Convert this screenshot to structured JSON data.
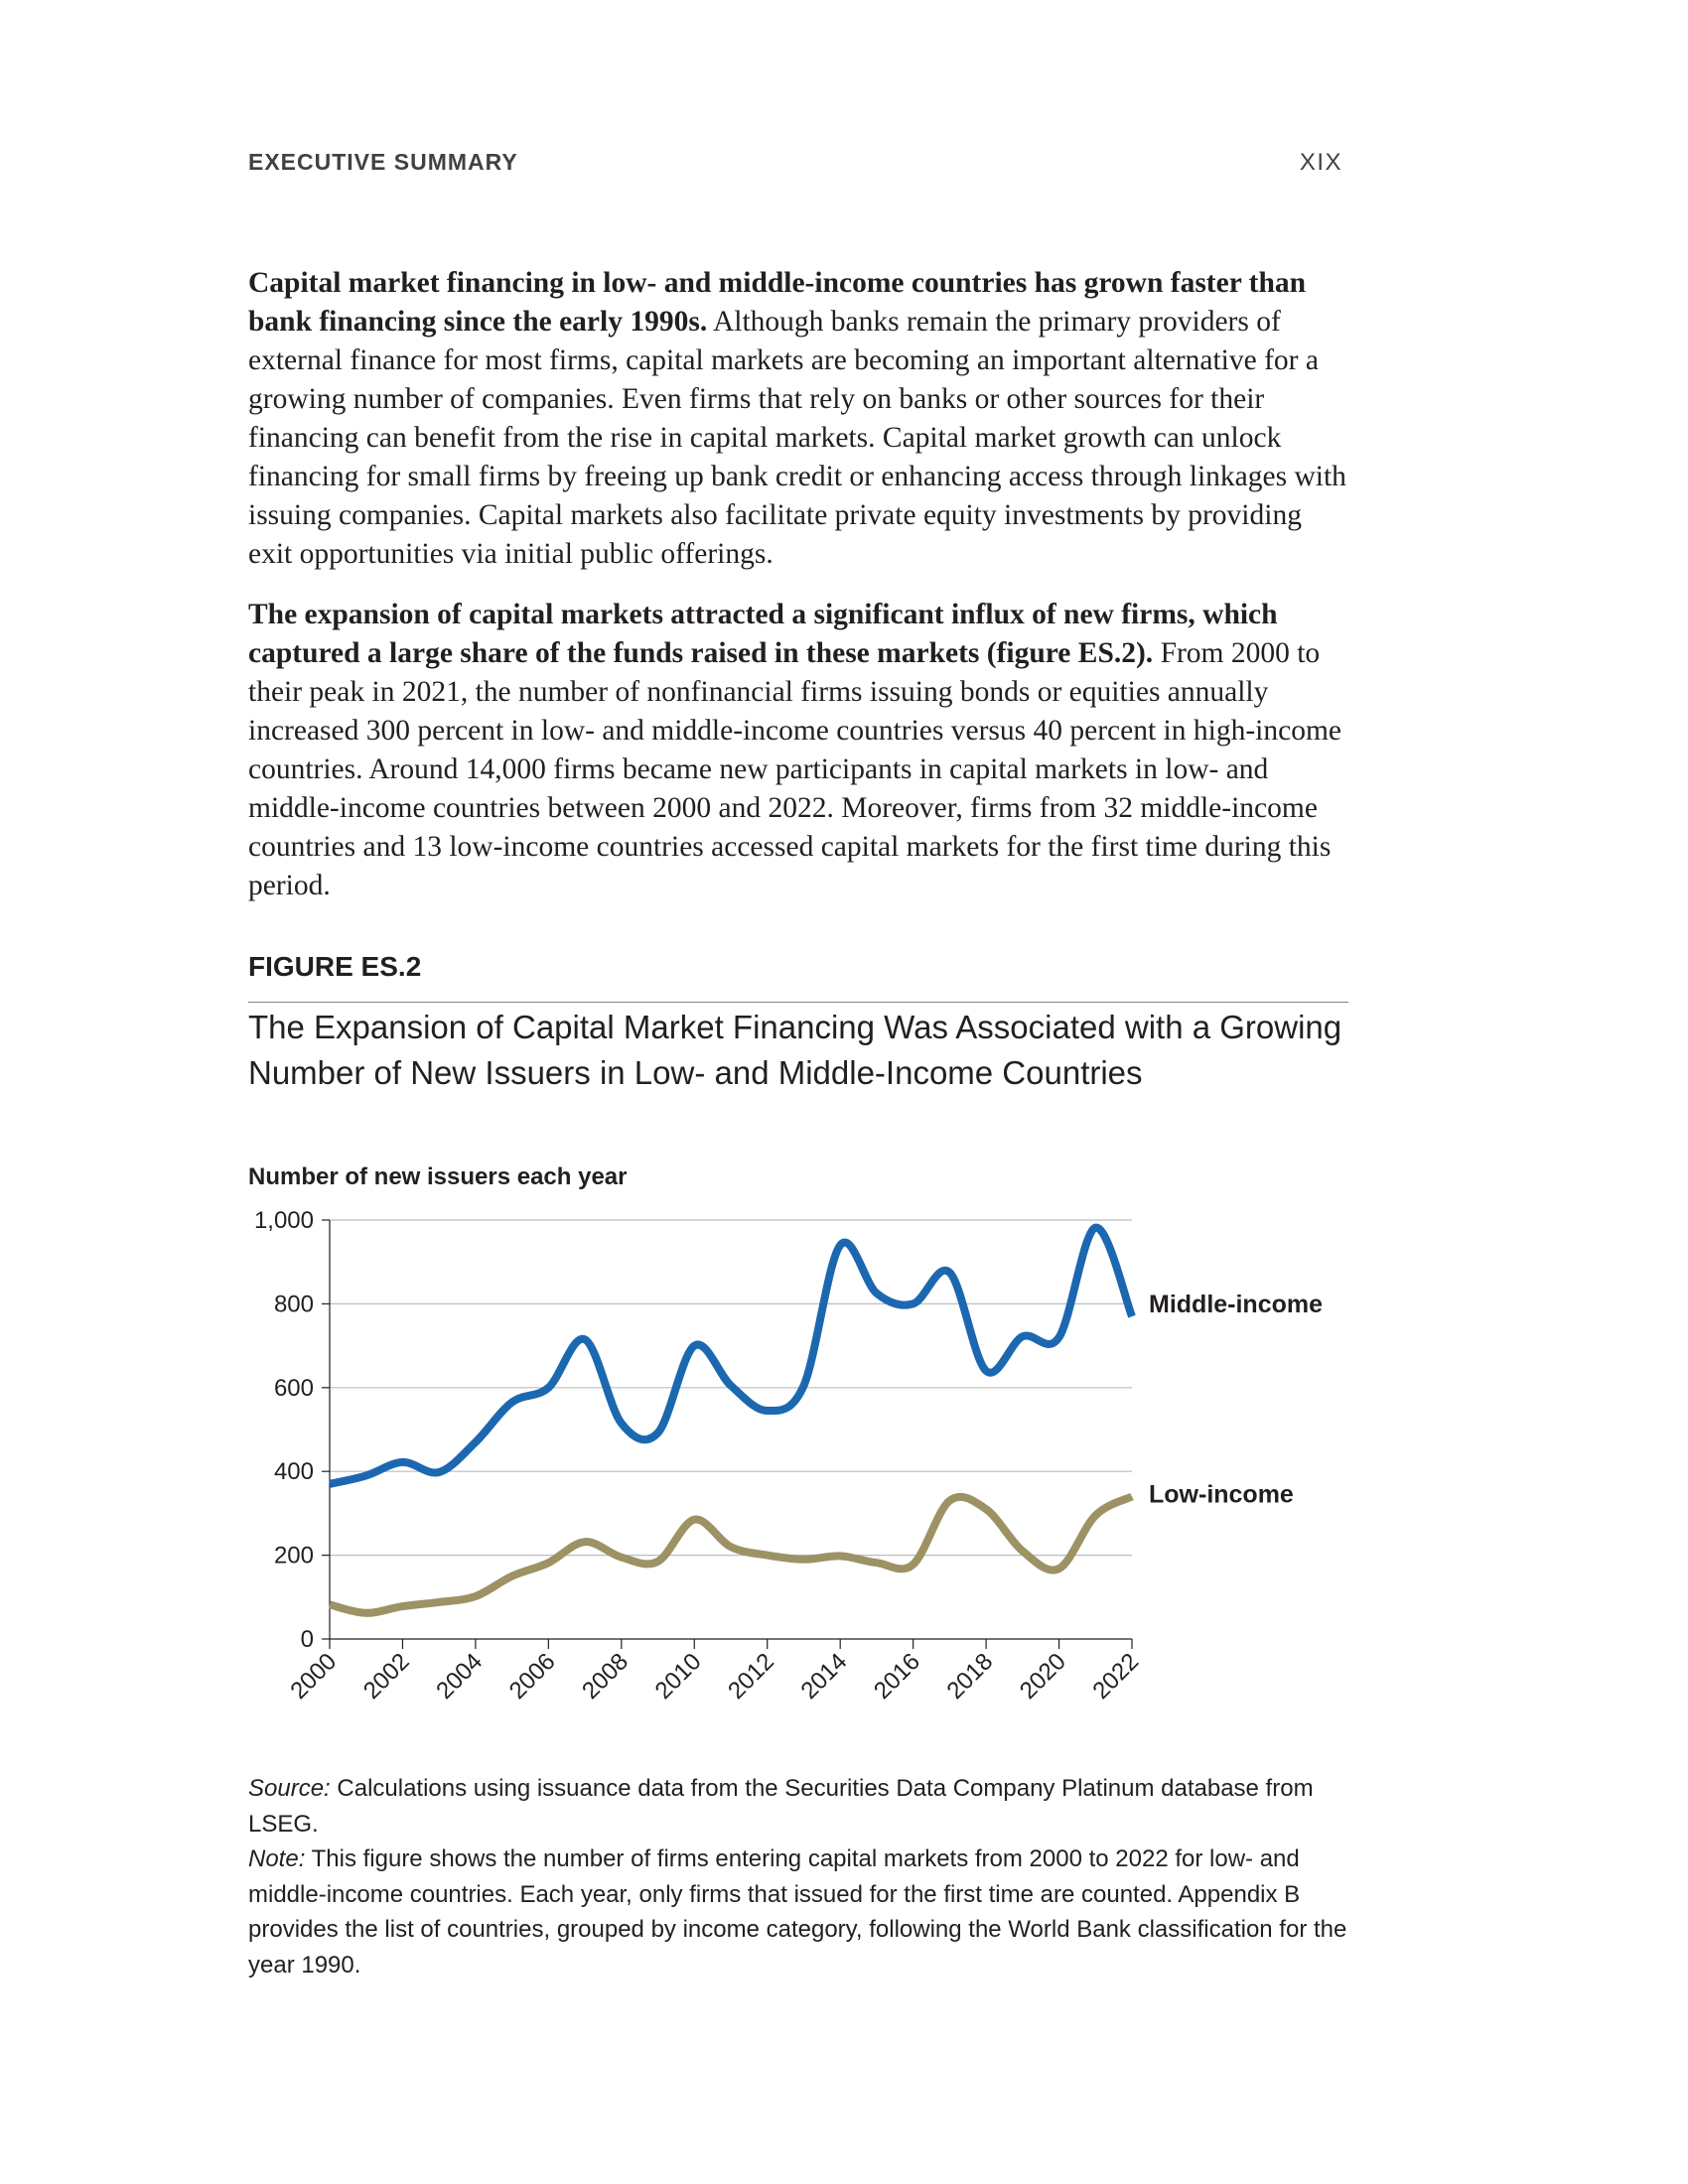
{
  "header": {
    "section": "EXECUTIVE SUMMARY",
    "page_number": "XIX"
  },
  "paragraph1": {
    "lead": "Capital market financing in low- and middle-income countries has grown faster than bank financing since the early 1990s.",
    "body": " Although banks remain the primary providers of external finance for most firms, capital markets are becoming an important alternative for a growing number of companies. Even firms that rely on banks or other sources for their financing can benefit from the rise in capital markets. Capital market growth can unlock financing for small firms by freeing up bank credit or enhancing access through linkages with issuing companies. Capital markets also facilitate private equity investments by providing exit opportunities via initial public offerings."
  },
  "paragraph2": {
    "lead": "The expansion of capital markets attracted a significant influx of new firms, which captured a large share of the funds raised in these markets (figure ES.2).",
    "body": " From 2000 to their peak in 2021, the number of nonfinancial firms issuing bonds or equities annually increased 300 percent in low- and middle-income countries versus 40 percent in high-income countries. Around 14,000 firms became new participants in capital markets in low- and middle-income countries between 2000 and 2022. Moreover, firms from 32 middle-income countries and 13 low-income countries accessed capital markets for the first time during this period."
  },
  "figure": {
    "label": "FIGURE ES.2",
    "title": "The Expansion of Capital Market Financing Was Associated with a Growing Number of New Issuers in Low- and Middle-Income Countries",
    "source_label": "Source:",
    "source_text": " Calculations using issuance data from the Securities Data Company Platinum database from LSEG.",
    "note_label": "Note:",
    "note_text": " This figure shows the number of firms entering capital markets from 2000 to 2022 for low- and middle-income countries. Each year, only firms that issued for the first time are counted. Appendix B provides the list of countries, grouped by income category, following the World Bank classification for the year 1990."
  },
  "chart_data": {
    "type": "line",
    "ylabel": "Number of new issuers each year",
    "xlabel": "",
    "ylim": [
      0,
      1000
    ],
    "yticks": [
      0,
      200,
      400,
      600,
      800,
      1000
    ],
    "ytick_labels": [
      "0",
      "200",
      "400",
      "600",
      "800",
      "1,000"
    ],
    "xlim": [
      2000,
      2022
    ],
    "xticks": [
      2000,
      2002,
      2004,
      2006,
      2008,
      2010,
      2012,
      2014,
      2016,
      2018,
      2020,
      2022
    ],
    "xtick_labels": [
      "2000",
      "2002",
      "2004",
      "2006",
      "2008",
      "2010",
      "2012",
      "2014",
      "2016",
      "2018",
      "2020",
      "2022"
    ],
    "grid": "horizontal",
    "x": [
      2000,
      2001,
      2002,
      2003,
      2004,
      2005,
      2006,
      2007,
      2008,
      2009,
      2010,
      2011,
      2012,
      2013,
      2014,
      2015,
      2016,
      2017,
      2018,
      2019,
      2020,
      2021,
      2022
    ],
    "series": [
      {
        "name": "Middle-income",
        "color": "#1c68b0",
        "values": [
          370,
          390,
          422,
          398,
          470,
          565,
          600,
          715,
          515,
          492,
          700,
          605,
          545,
          605,
          940,
          825,
          800,
          875,
          640,
          722,
          720,
          982,
          770
        ]
      },
      {
        "name": "Low-income",
        "color": "#9d9264",
        "values": [
          82,
          62,
          78,
          88,
          102,
          150,
          182,
          232,
          195,
          185,
          285,
          220,
          200,
          190,
          198,
          182,
          178,
          330,
          310,
          210,
          168,
          295,
          340
        ]
      }
    ]
  }
}
